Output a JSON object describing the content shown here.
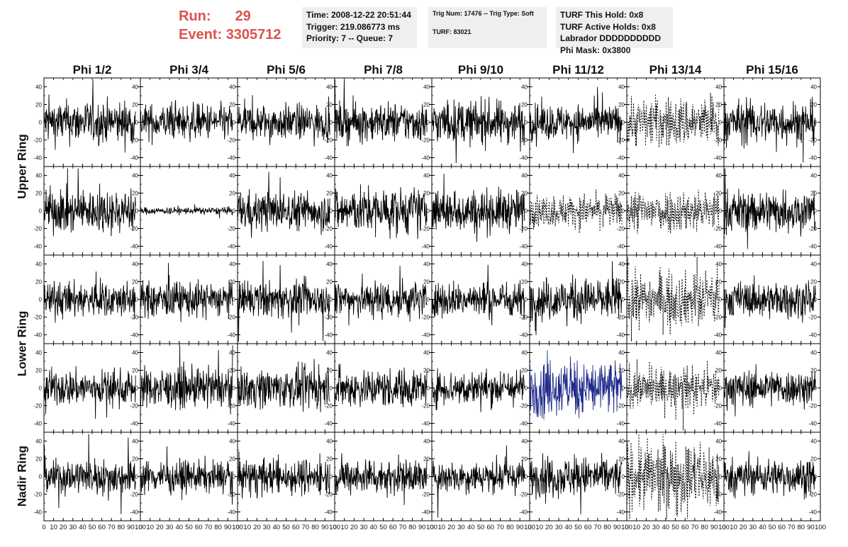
{
  "header": {
    "run_label": "Run:",
    "run_value": "29",
    "event_label": "Event:",
    "event_value": "3305712"
  },
  "info_time": {
    "time": "Time: 2008-12-22 20:51:44",
    "trigger": "Trigger: 219.086773 ms",
    "priority": "Priority: 7 -- Queue: 7"
  },
  "info_trig": {
    "trig": "Trig Num: 17476 -- Trig Type: Soft",
    "turf": "TURF: 83021"
  },
  "info_turf": {
    "hold": "TURF This Hold: 0x8",
    "active": "TURF Active Holds: 0x8",
    "labrador": "Labrador DDDDDDDDDD",
    "mask": "Phi Mask: 0x3800"
  },
  "chart_data": {
    "type": "line",
    "columns": [
      "Phi 1/2",
      "Phi 3/4",
      "Phi 5/6",
      "Phi 7/8",
      "Phi 9/10",
      "Phi 11/12",
      "Phi 13/14",
      "Phi 15/16"
    ],
    "rows": [
      "Upper Ring",
      "Lower Ring",
      "Nadir Ring"
    ],
    "xlim": [
      0,
      100
    ],
    "ylim": [
      -50,
      50
    ],
    "x_ticks": [
      0,
      10,
      20,
      30,
      40,
      50,
      60,
      70,
      80,
      90,
      100
    ],
    "x_tick_labels": [
      "0",
      "10",
      "20",
      "30",
      "40",
      "50",
      "60",
      "70",
      "80",
      "90",
      "100"
    ],
    "y_ticks": [
      -40,
      -20,
      0,
      20,
      40
    ],
    "y_tick_labels": [
      "-40",
      "-20",
      "0",
      "20",
      "40"
    ],
    "num_panel_rows": 5,
    "num_panel_cols": 8,
    "approx_amplitude": [
      [
        12,
        10,
        10,
        11,
        12,
        10,
        14,
        12
      ],
      [
        12,
        2,
        11,
        13,
        12,
        9,
        12,
        12
      ],
      [
        10,
        10,
        10,
        11,
        10,
        12,
        15,
        10
      ],
      [
        10,
        11,
        11,
        11,
        10,
        16,
        11,
        10
      ],
      [
        10,
        9,
        10,
        10,
        9,
        11,
        20,
        10
      ]
    ],
    "dashed_panels": [
      [
        0,
        6
      ],
      [
        1,
        5
      ],
      [
        1,
        6
      ],
      [
        2,
        6
      ],
      [
        3,
        6
      ],
      [
        4,
        6
      ]
    ],
    "highlight_panel": {
      "row": 3,
      "col": 5,
      "color": "#1f2a8a"
    },
    "line_color": "#000000"
  }
}
